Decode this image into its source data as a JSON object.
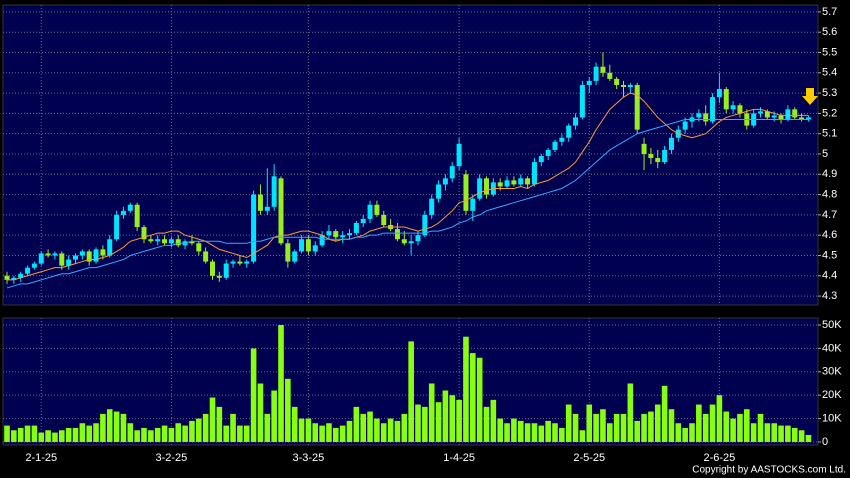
{
  "chart_data": {
    "type": "candlestick",
    "up_color": "#00e5ff",
    "down_color": "#99ee22",
    "volume_color": "#88ff11",
    "grid": true,
    "categories": [
      null,
      null,
      null,
      null,
      null,
      "2-1-25",
      null,
      null,
      null,
      null,
      null,
      null,
      null,
      null,
      null,
      null,
      null,
      null,
      null,
      null,
      null,
      null,
      null,
      null,
      "3-2-25",
      null,
      null,
      null,
      null,
      null,
      null,
      null,
      null,
      null,
      null,
      null,
      null,
      null,
      null,
      null,
      null,
      null,
      null,
      null,
      "3-3-25",
      null,
      null,
      null,
      null,
      null,
      null,
      null,
      null,
      null,
      null,
      null,
      null,
      null,
      null,
      null,
      null,
      null,
      null,
      null,
      null,
      null,
      "1-4-25",
      null,
      null,
      null,
      null,
      null,
      null,
      null,
      null,
      null,
      null,
      null,
      null,
      null,
      null,
      null,
      null,
      null,
      null,
      "2-5-25",
      null,
      null,
      null,
      null,
      null,
      null,
      null,
      null,
      null,
      null,
      null,
      null,
      null,
      null,
      null,
      null,
      null,
      null,
      "2-6-25",
      null,
      null,
      null,
      null,
      null,
      null,
      null,
      null,
      null,
      null,
      null,
      null,
      null
    ],
    "open": [
      4.4,
      4.38,
      4.39,
      4.41,
      4.44,
      4.46,
      4.51,
      4.5,
      4.51,
      4.45,
      4.48,
      4.5,
      4.52,
      4.47,
      4.53,
      4.5,
      4.58,
      4.7,
      4.72,
      4.75,
      4.64,
      4.58,
      4.57,
      4.58,
      4.56,
      4.58,
      4.55,
      4.57,
      4.56,
      4.52,
      4.47,
      4.4,
      4.39,
      4.46,
      4.47,
      4.46,
      4.47,
      4.8,
      4.72,
      4.74,
      4.88,
      4.56,
      4.47,
      4.52,
      4.58,
      4.52,
      4.55,
      4.6,
      4.62,
      4.59,
      4.6,
      4.61,
      4.66,
      4.68,
      4.75,
      4.7,
      4.65,
      4.63,
      4.58,
      4.56,
      4.57,
      4.6,
      4.7,
      4.78,
      4.85,
      4.88,
      4.94,
      4.9,
      4.72,
      4.78,
      4.88,
      4.8,
      4.86,
      4.84,
      4.87,
      4.85,
      4.88,
      4.85,
      4.96,
      4.99,
      5.02,
      5.06,
      5.08,
      5.14,
      5.18,
      5.34,
      5.36,
      5.43,
      5.4,
      5.37,
      5.34,
      5.33,
      5.34,
      5.05,
      5.0,
      4.98,
      4.96,
      5.02,
      5.08,
      5.12,
      5.16,
      5.18,
      5.2,
      5.16,
      5.28,
      5.32,
      5.22,
      5.24,
      5.2,
      5.14,
      5.2,
      5.21,
      5.18,
      5.19,
      5.17,
      5.22,
      5.18,
      5.17
    ],
    "high": [
      4.42,
      4.4,
      4.42,
      4.45,
      4.47,
      4.52,
      4.53,
      4.52,
      4.52,
      4.5,
      4.51,
      4.53,
      4.53,
      4.54,
      4.55,
      4.6,
      4.72,
      4.74,
      4.76,
      4.76,
      4.65,
      4.6,
      4.6,
      4.6,
      4.59,
      4.6,
      4.58,
      4.6,
      4.57,
      4.54,
      4.48,
      4.42,
      4.48,
      4.48,
      4.5,
      4.48,
      4.82,
      4.85,
      4.93,
      4.95,
      4.89,
      4.58,
      4.53,
      4.6,
      4.6,
      4.57,
      4.62,
      4.65,
      4.63,
      4.62,
      4.63,
      4.67,
      4.7,
      4.77,
      4.77,
      4.72,
      4.68,
      4.66,
      4.62,
      4.6,
      4.62,
      4.72,
      4.8,
      4.87,
      4.9,
      4.96,
      5.08,
      4.92,
      4.8,
      4.9,
      4.89,
      4.88,
      4.88,
      4.89,
      4.89,
      4.9,
      4.89,
      4.98,
      5.0,
      5.03,
      5.07,
      5.1,
      5.15,
      5.2,
      5.36,
      5.38,
      5.45,
      5.5,
      5.44,
      5.38,
      5.36,
      5.35,
      5.35,
      5.08,
      5.03,
      5.02,
      5.04,
      5.1,
      5.14,
      5.18,
      5.2,
      5.22,
      5.24,
      5.3,
      5.4,
      5.33,
      5.26,
      5.25,
      5.22,
      5.22,
      5.23,
      5.22,
      5.21,
      5.2,
      5.24,
      5.23,
      5.2,
      5.19
    ],
    "low": [
      4.36,
      4.36,
      4.37,
      4.4,
      4.43,
      4.45,
      4.49,
      4.48,
      4.43,
      4.43,
      4.46,
      4.48,
      4.45,
      4.46,
      4.48,
      4.49,
      4.57,
      4.68,
      4.71,
      4.62,
      4.56,
      4.56,
      4.55,
      4.55,
      4.54,
      4.54,
      4.53,
      4.55,
      4.5,
      4.46,
      4.38,
      4.37,
      4.38,
      4.44,
      4.45,
      4.44,
      4.46,
      4.7,
      4.7,
      4.72,
      4.55,
      4.44,
      4.46,
      4.51,
      4.5,
      4.5,
      4.54,
      4.58,
      4.57,
      4.56,
      4.58,
      4.6,
      4.64,
      4.66,
      4.69,
      4.64,
      4.62,
      4.57,
      4.55,
      4.5,
      4.55,
      4.59,
      4.68,
      4.76,
      4.82,
      4.86,
      4.92,
      4.7,
      4.67,
      4.77,
      4.78,
      4.79,
      4.82,
      4.83,
      4.84,
      4.84,
      4.83,
      4.84,
      4.94,
      4.97,
      5.01,
      5.04,
      5.06,
      5.12,
      5.17,
      5.3,
      5.34,
      5.38,
      5.36,
      5.32,
      5.28,
      5.3,
      5.1,
      4.92,
      4.95,
      4.93,
      4.95,
      5.0,
      5.06,
      5.1,
      5.13,
      5.16,
      5.14,
      5.15,
      5.25,
      5.2,
      5.2,
      5.18,
      5.12,
      5.13,
      5.18,
      5.17,
      5.16,
      5.15,
      5.16,
      5.17,
      5.16,
      5.16
    ],
    "close": [
      4.38,
      4.39,
      4.41,
      4.44,
      4.46,
      4.51,
      4.5,
      4.51,
      4.45,
      4.48,
      4.5,
      4.52,
      4.47,
      4.53,
      4.5,
      4.58,
      4.7,
      4.72,
      4.75,
      4.64,
      4.58,
      4.57,
      4.58,
      4.56,
      4.58,
      4.55,
      4.57,
      4.56,
      4.52,
      4.47,
      4.4,
      4.39,
      4.46,
      4.47,
      4.46,
      4.47,
      4.8,
      4.72,
      4.74,
      4.89,
      4.56,
      4.47,
      4.52,
      4.58,
      4.52,
      4.55,
      4.6,
      4.62,
      4.59,
      4.6,
      4.61,
      4.66,
      4.68,
      4.75,
      4.7,
      4.65,
      4.63,
      4.58,
      4.56,
      4.57,
      4.6,
      4.7,
      4.78,
      4.85,
      4.88,
      4.94,
      5.05,
      4.72,
      4.78,
      4.88,
      4.8,
      4.86,
      4.84,
      4.87,
      4.85,
      4.88,
      4.85,
      4.96,
      4.99,
      5.02,
      5.06,
      5.08,
      5.14,
      5.18,
      5.34,
      5.36,
      5.43,
      5.4,
      5.37,
      5.34,
      5.33,
      5.34,
      5.12,
      5.0,
      4.98,
      4.96,
      5.02,
      5.08,
      5.12,
      5.16,
      5.18,
      5.2,
      5.16,
      5.28,
      5.32,
      5.22,
      5.24,
      5.2,
      5.14,
      5.2,
      5.21,
      5.18,
      5.19,
      5.17,
      5.22,
      5.18,
      5.17,
      5.18
    ],
    "ma": [
      {
        "color": "#ff9933",
        "values": [
          4.38,
          4.38,
          4.39,
          4.4,
          4.41,
          4.42,
          4.43,
          4.44,
          4.44,
          4.45,
          4.46,
          4.47,
          4.48,
          4.48,
          4.49,
          4.5,
          4.52,
          4.54,
          4.57,
          4.58,
          4.59,
          4.6,
          4.61,
          4.61,
          4.62,
          4.62,
          4.6,
          4.59,
          4.58,
          4.57,
          4.55,
          4.53,
          4.52,
          4.51,
          4.5,
          4.49,
          4.51,
          4.53,
          4.55,
          4.59,
          4.6,
          4.6,
          4.61,
          4.62,
          4.62,
          4.61,
          4.6,
          4.58,
          4.57,
          4.58,
          4.58,
          4.59,
          4.6,
          4.62,
          4.63,
          4.64,
          4.64,
          4.64,
          4.64,
          4.63,
          4.62,
          4.63,
          4.64,
          4.66,
          4.69,
          4.72,
          4.76,
          4.77,
          4.79,
          4.81,
          4.82,
          4.83,
          4.83,
          4.83,
          4.83,
          4.84,
          4.83,
          4.85,
          4.86,
          4.87,
          4.89,
          4.91,
          4.93,
          4.96,
          5.01,
          5.06,
          5.12,
          5.17,
          5.22,
          5.25,
          5.28,
          5.3,
          5.29,
          5.26,
          5.22,
          5.18,
          5.15,
          5.12,
          5.1,
          5.09,
          5.08,
          5.09,
          5.1,
          5.13,
          5.16,
          5.18,
          5.19,
          5.2,
          5.21,
          5.22,
          5.22,
          5.21,
          5.2,
          5.19,
          5.19,
          5.19,
          5.19,
          5.19
        ]
      },
      {
        "color": "#33aaff",
        "values": [
          4.34,
          4.35,
          4.36,
          4.36,
          4.37,
          4.38,
          4.39,
          4.4,
          4.41,
          4.41,
          4.42,
          4.43,
          4.44,
          4.44,
          4.45,
          4.46,
          4.47,
          4.48,
          4.5,
          4.51,
          4.52,
          4.53,
          4.54,
          4.55,
          4.55,
          4.56,
          4.56,
          4.57,
          4.57,
          4.57,
          4.57,
          4.57,
          4.56,
          4.56,
          4.56,
          4.56,
          4.57,
          4.57,
          4.58,
          4.59,
          4.59,
          4.59,
          4.59,
          4.59,
          4.59,
          4.59,
          4.58,
          4.58,
          4.58,
          4.58,
          4.58,
          4.59,
          4.59,
          4.6,
          4.6,
          4.61,
          4.61,
          4.61,
          4.61,
          4.61,
          4.61,
          4.61,
          4.62,
          4.62,
          4.63,
          4.64,
          4.66,
          4.67,
          4.69,
          4.7,
          4.72,
          4.73,
          4.74,
          4.75,
          4.76,
          4.77,
          4.78,
          4.79,
          4.8,
          4.81,
          4.82,
          4.83,
          4.85,
          4.87,
          4.9,
          4.93,
          4.96,
          4.99,
          5.02,
          5.04,
          5.06,
          5.08,
          5.1,
          5.11,
          5.12,
          5.13,
          5.14,
          5.15,
          5.16,
          5.17,
          5.17,
          5.17,
          5.17,
          5.17,
          5.17,
          5.17,
          5.17,
          5.17,
          5.17,
          5.17,
          5.17,
          5.17,
          5.17,
          5.17,
          5.17,
          5.17,
          5.17,
          5.17
        ]
      }
    ],
    "ylim": [
      4.256,
      5.734
    ],
    "yticks": [
      4.3,
      4.4,
      4.5,
      4.6,
      4.7,
      4.8,
      4.9,
      5,
      5.1,
      5.2,
      5.3,
      5.4,
      5.5,
      5.6,
      5.7
    ],
    "volume": {
      "values": [
        7000,
        5000,
        6000,
        7000,
        7000,
        4000,
        5000,
        4000,
        5000,
        6000,
        6000,
        8000,
        7000,
        8000,
        12000,
        14000,
        13000,
        12000,
        8000,
        5000,
        6000,
        5000,
        6000,
        7000,
        6000,
        8000,
        7000,
        9000,
        10000,
        12000,
        19000,
        15000,
        7000,
        12000,
        7000,
        7000,
        40000,
        25000,
        12000,
        22000,
        50000,
        27000,
        15000,
        10000,
        10000,
        8000,
        7000,
        8000,
        6000,
        7000,
        9000,
        15000,
        12000,
        13000,
        10000,
        8000,
        10000,
        9000,
        12000,
        43000,
        16000,
        15000,
        25000,
        17000,
        22000,
        20000,
        18000,
        45000,
        38000,
        36000,
        15000,
        18000,
        10000,
        8000,
        10000,
        9000,
        8000,
        8000,
        7000,
        9000,
        8000,
        6000,
        16000,
        12000,
        5000,
        16000,
        12000,
        14000,
        8000,
        12000,
        12000,
        25000,
        9000,
        12000,
        13000,
        16000,
        24000,
        14000,
        8000,
        6000,
        8000,
        16000,
        12000,
        16000,
        20000,
        13000,
        10000,
        12000,
        14000,
        8000,
        12000,
        8000,
        8000,
        7000,
        7000,
        6000,
        5000,
        3000
      ],
      "ylim": [
        -1300,
        53000
      ],
      "yticks": [
        {
          "value": 0,
          "label": "0"
        },
        {
          "value": 10000,
          "label": "10K"
        },
        {
          "value": 20000,
          "label": "20K"
        },
        {
          "value": 30000,
          "label": "30K"
        },
        {
          "value": 40000,
          "label": "40K"
        },
        {
          "value": 50000,
          "label": "50K"
        }
      ]
    },
    "copyright": "Copyright by AASTOCKS.com Ltd."
  }
}
